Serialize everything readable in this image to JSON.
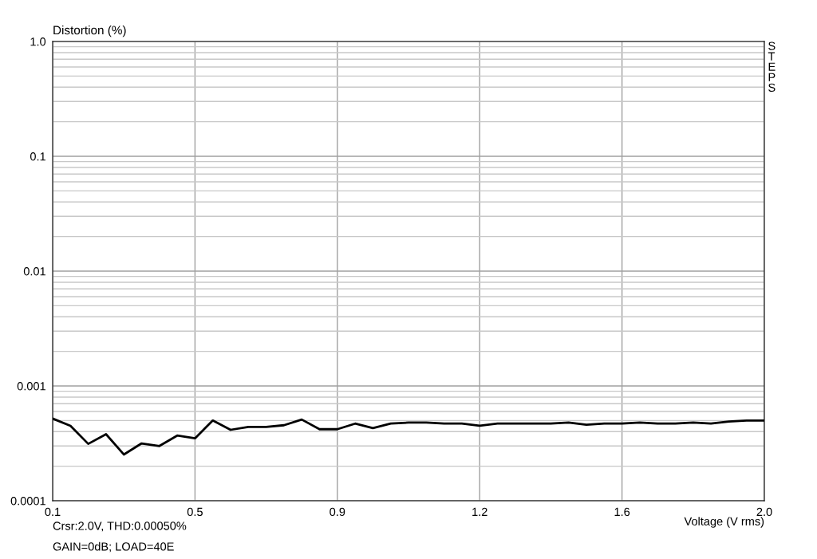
{
  "chart_data": {
    "type": "line",
    "ylabel": "Distortion (%)",
    "xlabel": "Voltage (V rms)",
    "annotations": [
      "Crsr:2.0V, THD:0.00050%",
      "GAIN=0dB; LOAD=40E",
      "STEPS"
    ],
    "x": [
      0.1,
      0.1475,
      0.195,
      0.2425,
      0.29,
      0.3375,
      0.385,
      0.4325,
      0.48,
      0.5275,
      0.575,
      0.6225,
      0.67,
      0.7175,
      0.765,
      0.8125,
      0.86,
      0.9075,
      0.955,
      1.0025,
      1.05,
      1.0975,
      1.145,
      1.1925,
      1.24,
      1.2875,
      1.335,
      1.3825,
      1.43,
      1.4775,
      1.525,
      1.5725,
      1.62,
      1.6675,
      1.715,
      1.7625,
      1.81,
      1.8575,
      1.905,
      1.9525,
      2.0
    ],
    "series": [
      {
        "color": "#000000",
        "values": [
          0.00052,
          0.00045,
          0.000313,
          0.00038,
          0.000253,
          0.000316,
          0.0003,
          0.00037,
          0.00035,
          0.0005,
          0.000415,
          0.00044,
          0.00044,
          0.000455,
          0.00051,
          0.00042,
          0.00042,
          0.00047,
          0.00043,
          0.00047,
          0.00048,
          0.00048,
          0.00047,
          0.00047,
          0.00045,
          0.00047,
          0.00047,
          0.00047,
          0.00047,
          0.00048,
          0.00046,
          0.00047,
          0.00047,
          0.00048,
          0.00047,
          0.00047,
          0.00048,
          0.00047,
          0.00049,
          0.0005,
          0.0005
        ]
      }
    ],
    "log": "y",
    "xlim": [
      0.1,
      2.0
    ],
    "ylim": [
      0.0001,
      1.0
    ],
    "xticks": [
      0.1,
      {
        "value": 0.48,
        "label": "0.5"
      },
      {
        "value": 0.86,
        "label": "0.9"
      },
      {
        "value": 1.24,
        "label": "1.2"
      },
      {
        "value": 1.62,
        "label": "1.6"
      },
      {
        "value": 2.0,
        "label": "2.0"
      }
    ],
    "yticks": [
      0.0001,
      0.001,
      0.01,
      0.1,
      {
        "value": 1.0,
        "label": "1.0"
      }
    ],
    "grid": true,
    "legend": false,
    "marker": "none",
    "line_style": "solid"
  }
}
